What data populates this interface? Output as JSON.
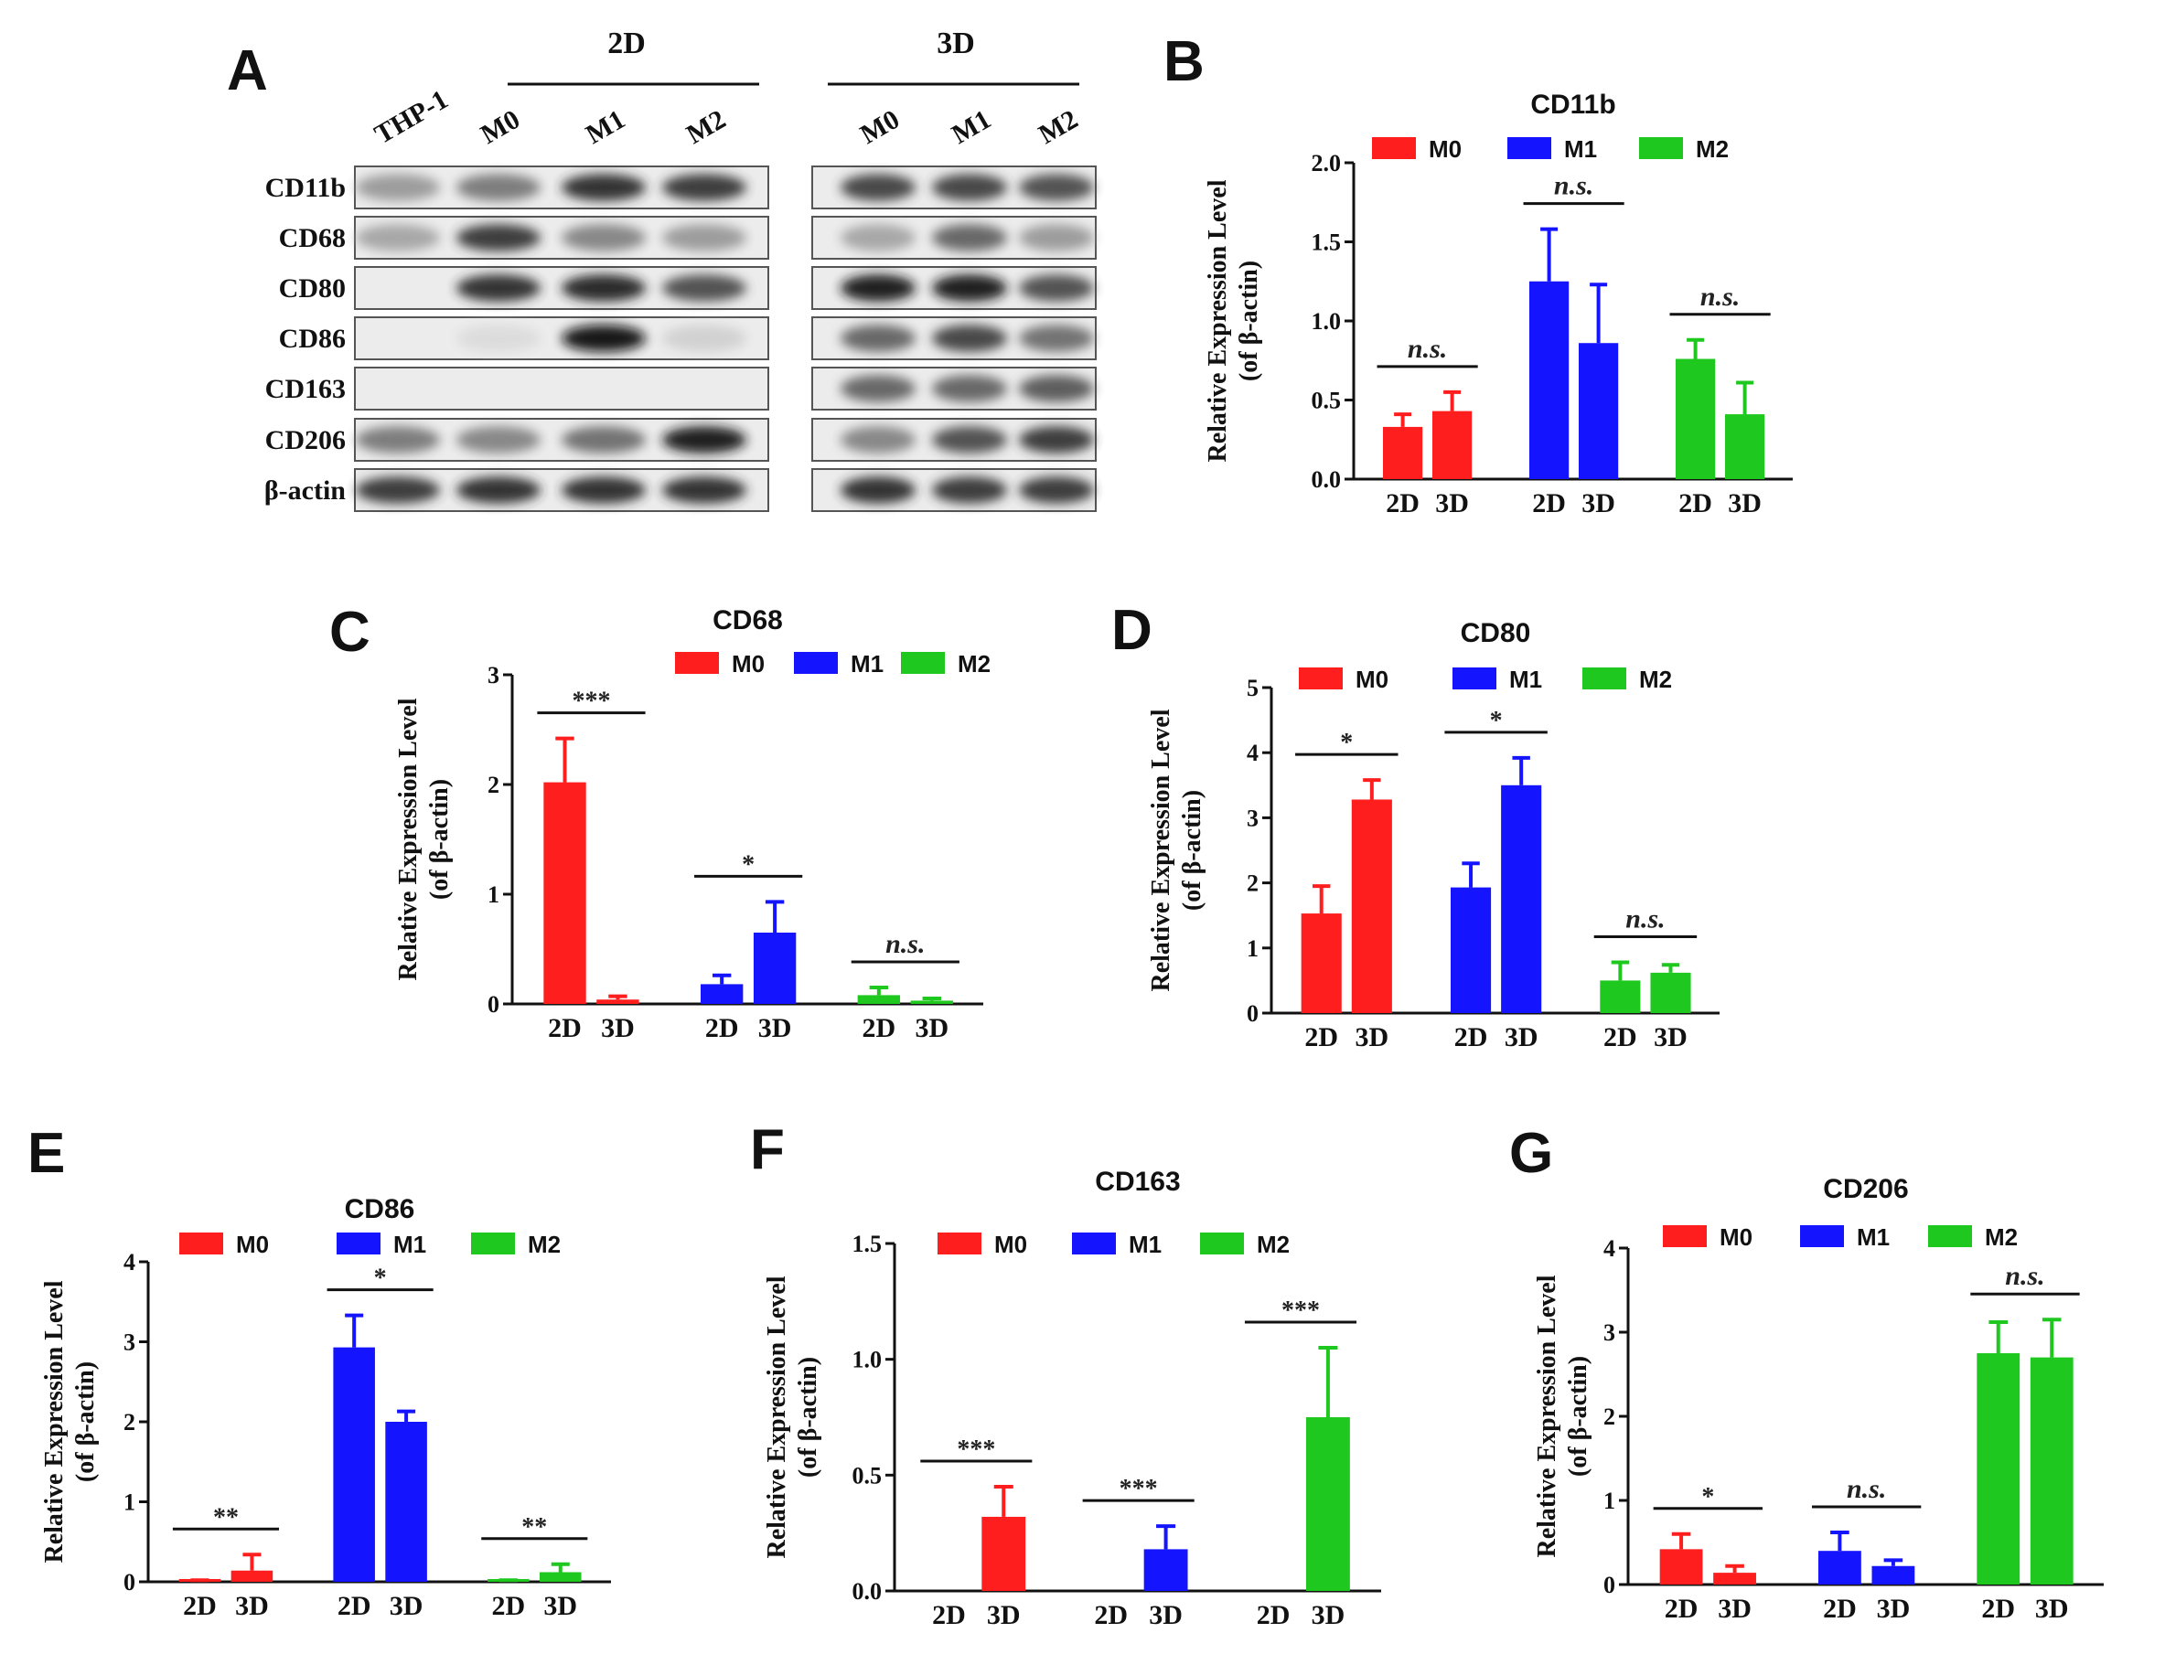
{
  "panel_a": {
    "letter": "A",
    "groups": [
      {
        "label": "2D",
        "lanes": [
          "THP-1",
          "M0",
          "M1",
          "M2"
        ]
      },
      {
        "label": "3D",
        "lanes": [
          "M0",
          "M1",
          "M2"
        ]
      }
    ],
    "rows": [
      "CD11b",
      "CD68",
      "CD80",
      "CD86",
      "CD163",
      "CD206",
      "β-actin"
    ],
    "band_intensity_2d": [
      [
        0.35,
        0.5,
        0.85,
        0.8
      ],
      [
        0.3,
        0.8,
        0.45,
        0.35
      ],
      [
        0.0,
        0.85,
        0.9,
        0.7
      ],
      [
        0.0,
        0.05,
        1.0,
        0.1
      ],
      [
        0.0,
        0.0,
        0.0,
        0.0
      ],
      [
        0.5,
        0.45,
        0.55,
        0.95
      ],
      [
        0.8,
        0.85,
        0.85,
        0.85
      ]
    ],
    "band_intensity_3d": [
      [
        0.75,
        0.75,
        0.7
      ],
      [
        0.3,
        0.6,
        0.35
      ],
      [
        0.95,
        0.95,
        0.7
      ],
      [
        0.6,
        0.75,
        0.55
      ],
      [
        0.6,
        0.6,
        0.65
      ],
      [
        0.45,
        0.7,
        0.8
      ],
      [
        0.85,
        0.8,
        0.8
      ]
    ]
  },
  "legend_labels": [
    "M0",
    "M1",
    "M2"
  ],
  "series_colors": [
    "#ff1e1e",
    "#1414ff",
    "#1ec81e"
  ],
  "chart_data": [
    {
      "id": "B",
      "letter": "B",
      "type": "bar",
      "title": "CD11b",
      "ylabel": [
        "Relative Expression Level",
        "(of β-actin)"
      ],
      "ylim": [
        0,
        2.0
      ],
      "yticks": [
        "0.0",
        "0.5",
        "1.0",
        "1.5",
        "2.0"
      ],
      "categories": [
        "2D",
        "3D"
      ],
      "series": [
        {
          "name": "M0",
          "values": [
            0.33,
            0.43
          ],
          "errors": [
            0.08,
            0.12
          ]
        },
        {
          "name": "M1",
          "values": [
            1.25,
            0.86
          ],
          "errors": [
            0.33,
            0.37
          ]
        },
        {
          "name": "M2",
          "values": [
            0.76,
            0.41
          ],
          "errors": [
            0.12,
            0.2
          ]
        }
      ],
      "significance": [
        "n.s.",
        "n.s.",
        "n.s."
      ]
    },
    {
      "id": "C",
      "letter": "C",
      "type": "bar",
      "title": "CD68",
      "ylabel": [
        "Relative Expression Level",
        "(of β-actin)"
      ],
      "ylim": [
        0,
        3
      ],
      "yticks": [
        "0",
        "1",
        "2",
        "3"
      ],
      "categories": [
        "2D",
        "3D"
      ],
      "series": [
        {
          "name": "M0",
          "values": [
            2.02,
            0.04
          ],
          "errors": [
            0.4,
            0.03
          ]
        },
        {
          "name": "M1",
          "values": [
            0.18,
            0.65
          ],
          "errors": [
            0.08,
            0.28
          ]
        },
        {
          "name": "M2",
          "values": [
            0.08,
            0.03
          ],
          "errors": [
            0.07,
            0.02
          ]
        }
      ],
      "significance": [
        "***",
        "*",
        "n.s."
      ]
    },
    {
      "id": "D",
      "letter": "D",
      "type": "bar",
      "title": "CD80",
      "ylabel": [
        "Relative Expression Level",
        "(of β-actin)"
      ],
      "ylim": [
        0,
        5
      ],
      "yticks": [
        "0",
        "1",
        "2",
        "3",
        "4",
        "5"
      ],
      "categories": [
        "2D",
        "3D"
      ],
      "series": [
        {
          "name": "M0",
          "values": [
            1.53,
            3.28
          ],
          "errors": [
            0.42,
            0.3
          ]
        },
        {
          "name": "M1",
          "values": [
            1.93,
            3.5
          ],
          "errors": [
            0.37,
            0.42
          ]
        },
        {
          "name": "M2",
          "values": [
            0.5,
            0.62
          ],
          "errors": [
            0.28,
            0.12
          ]
        }
      ],
      "significance": [
        "*",
        "*",
        "n.s."
      ]
    },
    {
      "id": "E",
      "letter": "E",
      "type": "bar",
      "title": "CD86",
      "ylabel": [
        "Relative Expression Level",
        "(of β-actin)"
      ],
      "ylim": [
        0,
        4
      ],
      "yticks": [
        "0",
        "1",
        "2",
        "3",
        "4"
      ],
      "categories": [
        "2D",
        "3D"
      ],
      "series": [
        {
          "name": "M0",
          "values": [
            0.01,
            0.14
          ],
          "errors": [
            0.01,
            0.2
          ]
        },
        {
          "name": "M1",
          "values": [
            2.93,
            2.0
          ],
          "errors": [
            0.4,
            0.13
          ]
        },
        {
          "name": "M2",
          "values": [
            0.01,
            0.12
          ],
          "errors": [
            0.01,
            0.1
          ]
        }
      ],
      "significance": [
        "**",
        "*",
        "**"
      ]
    },
    {
      "id": "F",
      "letter": "F",
      "type": "bar",
      "title": "CD163",
      "ylabel": [
        "Relative Expression Level",
        "(of β-actin)"
      ],
      "ylim": [
        0,
        1.5
      ],
      "yticks": [
        "0.0",
        "0.5",
        "1.0",
        "1.5"
      ],
      "categories": [
        "2D",
        "3D"
      ],
      "series": [
        {
          "name": "M0",
          "values": [
            0.0,
            0.32
          ],
          "errors": [
            0.0,
            0.13
          ]
        },
        {
          "name": "M1",
          "values": [
            0.0,
            0.18
          ],
          "errors": [
            0.0,
            0.1
          ]
        },
        {
          "name": "M2",
          "values": [
            0.0,
            0.75
          ],
          "errors": [
            0.0,
            0.3
          ]
        }
      ],
      "significance": [
        "***",
        "***",
        "***"
      ]
    },
    {
      "id": "G",
      "letter": "G",
      "type": "bar",
      "title": "CD206",
      "ylabel": [
        "Relative Expression Level",
        "(of β-actin)"
      ],
      "ylim": [
        0,
        4
      ],
      "yticks": [
        "0",
        "1",
        "2",
        "3",
        "4"
      ],
      "categories": [
        "2D",
        "3D"
      ],
      "series": [
        {
          "name": "M0",
          "values": [
            0.42,
            0.14
          ],
          "errors": [
            0.18,
            0.08
          ]
        },
        {
          "name": "M1",
          "values": [
            0.4,
            0.22
          ],
          "errors": [
            0.22,
            0.07
          ]
        },
        {
          "name": "M2",
          "values": [
            2.75,
            2.7
          ],
          "errors": [
            0.37,
            0.45
          ]
        }
      ],
      "significance": [
        "*",
        "n.s.",
        "n.s."
      ]
    }
  ]
}
